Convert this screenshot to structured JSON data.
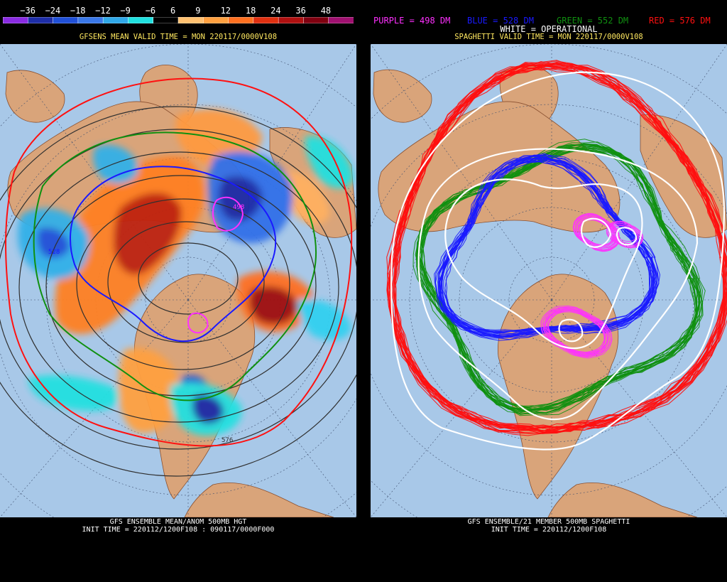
{
  "left": {
    "colorbar_labels": [
      "−36",
      "−24",
      "−18",
      "−12",
      "−9",
      "−6",
      "6",
      "9",
      "12",
      "18",
      "24",
      "36",
      "48"
    ],
    "colorbar_colors": [
      "#8a2be2",
      "#1e2ea8",
      "#2050d8",
      "#3a78e8",
      "#30a8e8",
      "#20e0e0",
      "#000000",
      "#ffc070",
      "#ffa040",
      "#ff7020",
      "#e03010",
      "#b01010",
      "#800010",
      "#a01070"
    ],
    "header": "GFSENS MEAN VALID TIME = MON 220117/0000V108",
    "contour_labels": {
      "a": "498",
      "b": "528",
      "c": "576"
    },
    "footer_line1": "GFS ENSEMBLE MEAN/ANOM 500MB HGT",
    "footer_line2": "INIT TIME = 220112/1200F108 : 090117/0000F000"
  },
  "right": {
    "legend_purple": "PURPLE = 498 DM",
    "legend_blue": "BLUE = 528 DM",
    "legend_green": "GREEN = 552 DM",
    "legend_red": "RED = 576 DM",
    "legend_white": "WHITE = OPERATIONAL",
    "header": "SPAGHETTI VALID TIME = MON 220117/0000V108",
    "footer_line1": "GFS ENSEMBLE/21 MEMBER 500MB SPAGHETTI",
    "footer_line2": "INIT TIME = 220112/1200F108"
  },
  "colors": {
    "ocean": "#a8c8e8",
    "land": "#d9a47a",
    "purple": "#ff30ff",
    "blue": "#1a1aff",
    "green": "#109010",
    "red": "#ff1010",
    "white": "#ffffff",
    "header_text": "#ffe860"
  }
}
